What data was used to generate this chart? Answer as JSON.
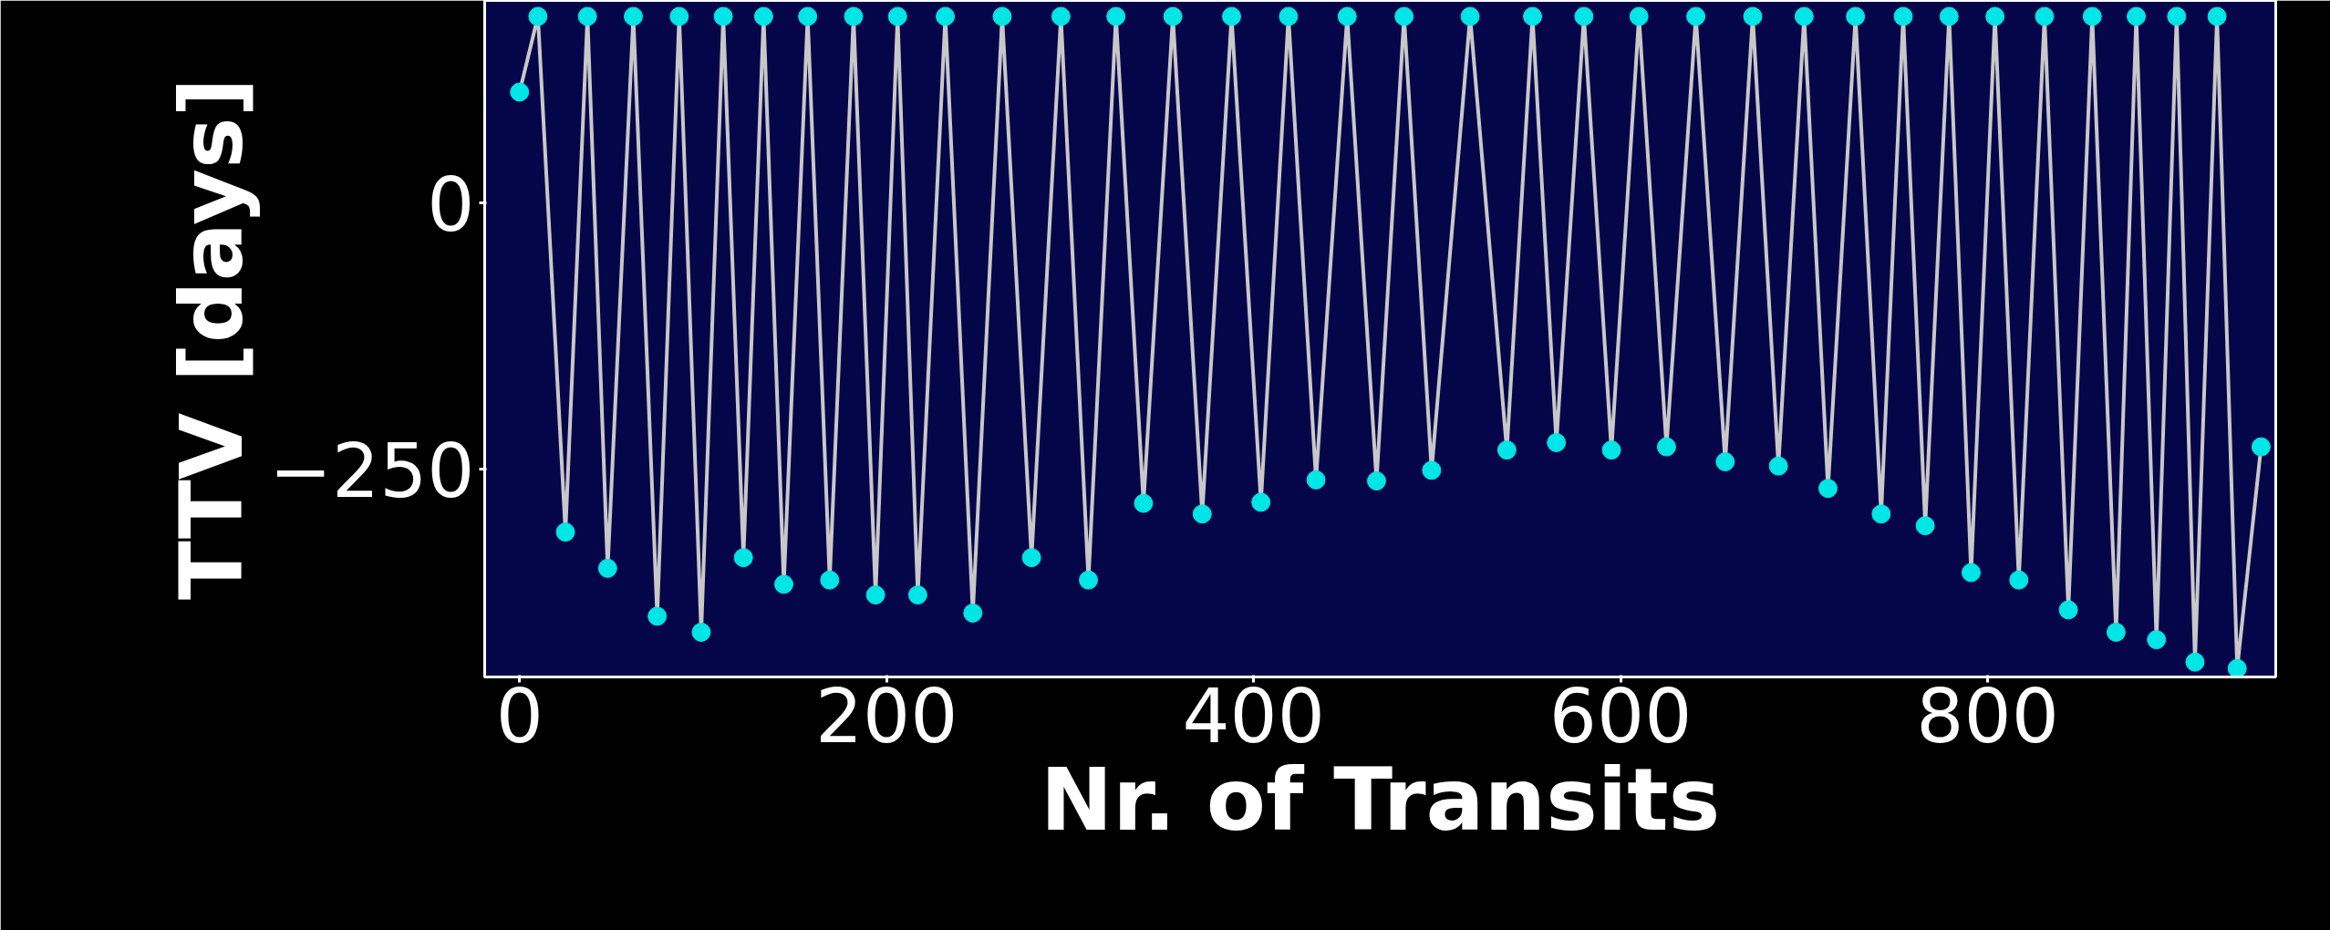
{
  "chart_data": {
    "type": "line",
    "xlabel": "Nr. of Transits",
    "ylabel": "TTV [days]",
    "xlim": [
      -19,
      957
    ],
    "ylim": [
      -445,
      190
    ],
    "xticks": [
      0,
      200,
      400,
      600,
      800
    ],
    "yticks": [
      -250,
      0
    ],
    "grid": false,
    "marker": "circle",
    "line_style": "solid",
    "series": [
      {
        "color": "#00e5e5",
        "x": [
          0,
          10,
          25,
          37,
          48,
          62,
          75,
          87,
          99,
          111,
          122,
          133,
          144,
          157,
          169,
          182,
          194,
          206,
          217,
          232,
          247,
          263,
          279,
          295,
          310,
          325,
          340,
          356,
          372,
          388,
          404,
          419,
          434,
          451,
          467,
          482,
          497,
          518,
          538,
          552,
          565,
          580,
          595,
          610,
          625,
          641,
          657,
          672,
          686,
          700,
          713,
          728,
          742,
          754,
          766,
          779,
          791,
          804,
          817,
          831,
          844,
          857,
          870,
          881,
          892,
          903,
          913,
          925,
          936,
          949
        ],
        "values": [
          104,
          175,
          -309,
          175,
          -343,
          175,
          -388,
          175,
          -403,
          175,
          -333,
          175,
          -358,
          175,
          -354,
          175,
          -368,
          175,
          -368,
          175,
          -385,
          175,
          -333,
          175,
          -354,
          175,
          -282,
          175,
          -292,
          175,
          -281,
          175,
          -260,
          175,
          -261,
          175,
          -251,
          175,
          -232,
          175,
          -225,
          175,
          -232,
          175,
          -229,
          175,
          -243,
          175,
          -247,
          175,
          -268,
          175,
          -292,
          175,
          -303,
          175,
          -347,
          175,
          -354,
          175,
          -382,
          175,
          -403,
          175,
          -410,
          175,
          -431,
          175,
          -437,
          -229
        ]
      }
    ]
  }
}
